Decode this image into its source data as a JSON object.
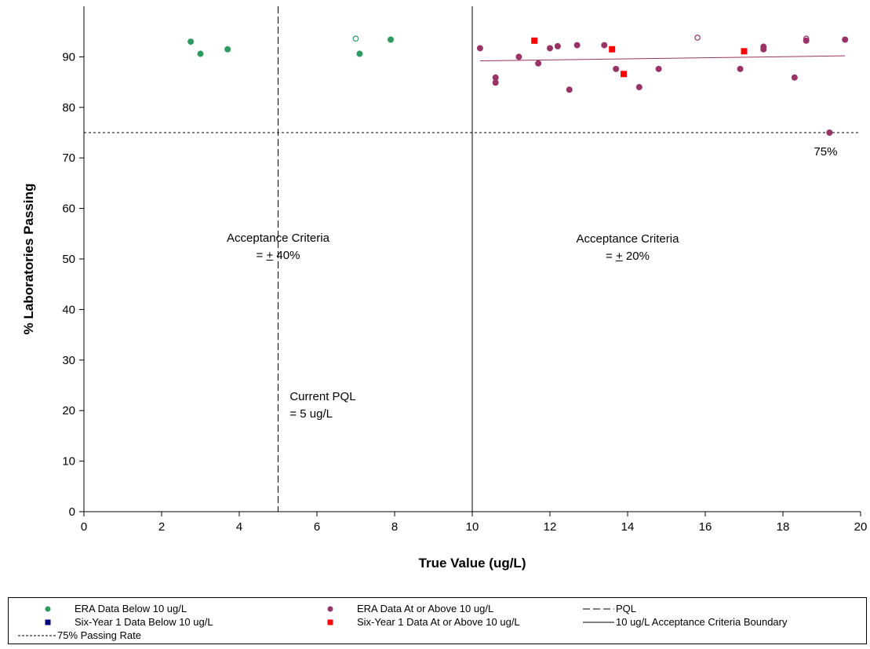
{
  "chart_data": {
    "type": "scatter",
    "title": "",
    "xlabel": "True Value (ug/L)",
    "ylabel": "% Laboratories Passing",
    "xlim": [
      0,
      20
    ],
    "ylim": [
      0,
      100
    ],
    "xticks": [
      0,
      2,
      4,
      6,
      8,
      10,
      12,
      14,
      16,
      18,
      20
    ],
    "yticks": [
      0,
      10,
      20,
      30,
      40,
      50,
      60,
      70,
      80,
      90
    ],
    "grid": false,
    "legend_position": "bottom",
    "series": [
      {
        "name": "ERA Data Below 10 ug/L",
        "marker": "circle",
        "color": "#2e9a62",
        "points": [
          {
            "x": 2.75,
            "y": 93.0
          },
          {
            "x": 3.0,
            "y": 90.6
          },
          {
            "x": 3.7,
            "y": 91.5
          },
          {
            "x": 7.0,
            "y": 93.6,
            "hollow": true
          },
          {
            "x": 7.1,
            "y": 90.6
          },
          {
            "x": 7.9,
            "y": 93.4
          }
        ]
      },
      {
        "name": "ERA Data At or Above 10 ug/L",
        "marker": "circle",
        "color": "#993366",
        "points": [
          {
            "x": 10.2,
            "y": 91.7
          },
          {
            "x": 10.6,
            "y": 85.9
          },
          {
            "x": 10.6,
            "y": 84.9
          },
          {
            "x": 11.2,
            "y": 90.0
          },
          {
            "x": 11.7,
            "y": 88.7
          },
          {
            "x": 12.0,
            "y": 91.7
          },
          {
            "x": 12.2,
            "y": 92.1
          },
          {
            "x": 12.5,
            "y": 83.5
          },
          {
            "x": 12.7,
            "y": 92.3
          },
          {
            "x": 13.4,
            "y": 92.3
          },
          {
            "x": 13.7,
            "y": 87.6
          },
          {
            "x": 14.3,
            "y": 84.0
          },
          {
            "x": 14.8,
            "y": 87.6
          },
          {
            "x": 15.8,
            "y": 93.8,
            "hollow": true
          },
          {
            "x": 16.9,
            "y": 87.6
          },
          {
            "x": 17.5,
            "y": 92.0
          },
          {
            "x": 17.5,
            "y": 91.5
          },
          {
            "x": 18.3,
            "y": 85.9
          },
          {
            "x": 18.6,
            "y": 93.6,
            "hollow": true
          },
          {
            "x": 18.6,
            "y": 93.2
          },
          {
            "x": 19.2,
            "y": 75.0
          },
          {
            "x": 19.6,
            "y": 93.4
          }
        ]
      },
      {
        "name": "Six-Year 1 Data Below 10 ug/L",
        "marker": "square",
        "color": "#000080",
        "points": []
      },
      {
        "name": "Six-Year 1 Data At or Above 10 ug/L",
        "marker": "square",
        "color": "#ff0000",
        "points": [
          {
            "x": 11.6,
            "y": 93.2
          },
          {
            "x": 13.6,
            "y": 91.5
          },
          {
            "x": 13.9,
            "y": 86.6
          },
          {
            "x": 17.0,
            "y": 91.1
          }
        ]
      }
    ],
    "trendline": {
      "color": "#993366",
      "x": [
        10.2,
        19.6
      ],
      "y": [
        89.2,
        90.2
      ]
    },
    "reference_lines": {
      "pql": {
        "name": "PQL",
        "x": 5,
        "style": "long-dash"
      },
      "boundary": {
        "name": "10 ug/L Acceptance Criteria Boundary",
        "x": 10,
        "style": "solid"
      },
      "passing_rate": {
        "name": "75% Passing Rate",
        "y": 75,
        "style": "short-dash"
      }
    },
    "annotations": {
      "left_criteria_line1": "Acceptance Criteria",
      "left_criteria_line2_prefix": "= ",
      "left_criteria_pm": "+",
      "left_criteria_value": " 40%",
      "right_criteria_line1": "Acceptance Criteria",
      "right_criteria_line2_prefix": "= ",
      "right_criteria_pm": "+",
      "right_criteria_value": " 20%",
      "pql_line1": "Current PQL",
      "pql_line2": "= 5 ug/L",
      "rate_label": "75%"
    }
  },
  "legend": {
    "items": [
      {
        "label": "ERA Data Below 10 ug/L"
      },
      {
        "label": "ERA Data At or Above 10 ug/L"
      },
      {
        "label": "PQL"
      },
      {
        "label": "Six-Year 1 Data Below 10 ug/L"
      },
      {
        "label": "Six-Year 1 Data At or Above 10 ug/L"
      },
      {
        "label": "10 ug/L Acceptance Criteria Boundary"
      },
      {
        "label": "75% Passing Rate"
      }
    ]
  }
}
